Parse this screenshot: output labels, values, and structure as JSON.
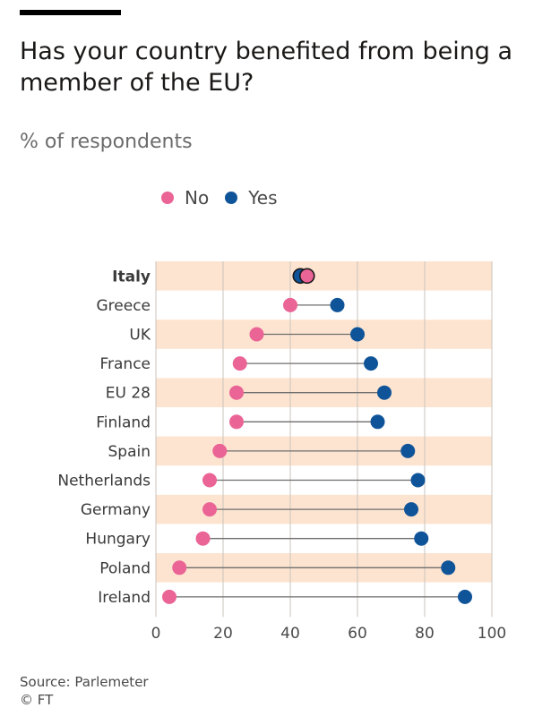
{
  "header": {
    "title": "Has your country benefited from being a member of the EU?",
    "subtitle": "% of respondents"
  },
  "legend": {
    "items": [
      {
        "label": "No",
        "color": "#ea6496"
      },
      {
        "label": "Yes",
        "color": "#0f5499"
      }
    ]
  },
  "footer": {
    "source": "Source: Parlemeter",
    "credit": "© FT"
  },
  "colors": {
    "no": "#ea6496",
    "yes": "#0f5499",
    "band": "#fde4d0",
    "connector": "#6e6e6e",
    "grid": "#c9c3bd"
  },
  "chart_data": {
    "type": "dot-range",
    "title": "Has your country benefited from being a member of the EU?",
    "subtitle": "% of respondents",
    "xlim": [
      0,
      100
    ],
    "xticks": [
      0,
      20,
      40,
      60,
      80,
      100
    ],
    "grid": true,
    "legend_position": "top",
    "categories": [
      "Italy",
      "Greece",
      "UK",
      "France",
      "EU 28",
      "Finland",
      "Spain",
      "Netherlands",
      "Germany",
      "Hungary",
      "Poland",
      "Ireland"
    ],
    "highlight": "Italy",
    "series": [
      {
        "name": "No",
        "values": [
          45,
          40,
          30,
          25,
          24,
          24,
          19,
          16,
          16,
          14,
          7,
          4
        ]
      },
      {
        "name": "Yes",
        "values": [
          43,
          54,
          60,
          64,
          68,
          66,
          75,
          78,
          76,
          79,
          87,
          92
        ]
      }
    ]
  }
}
